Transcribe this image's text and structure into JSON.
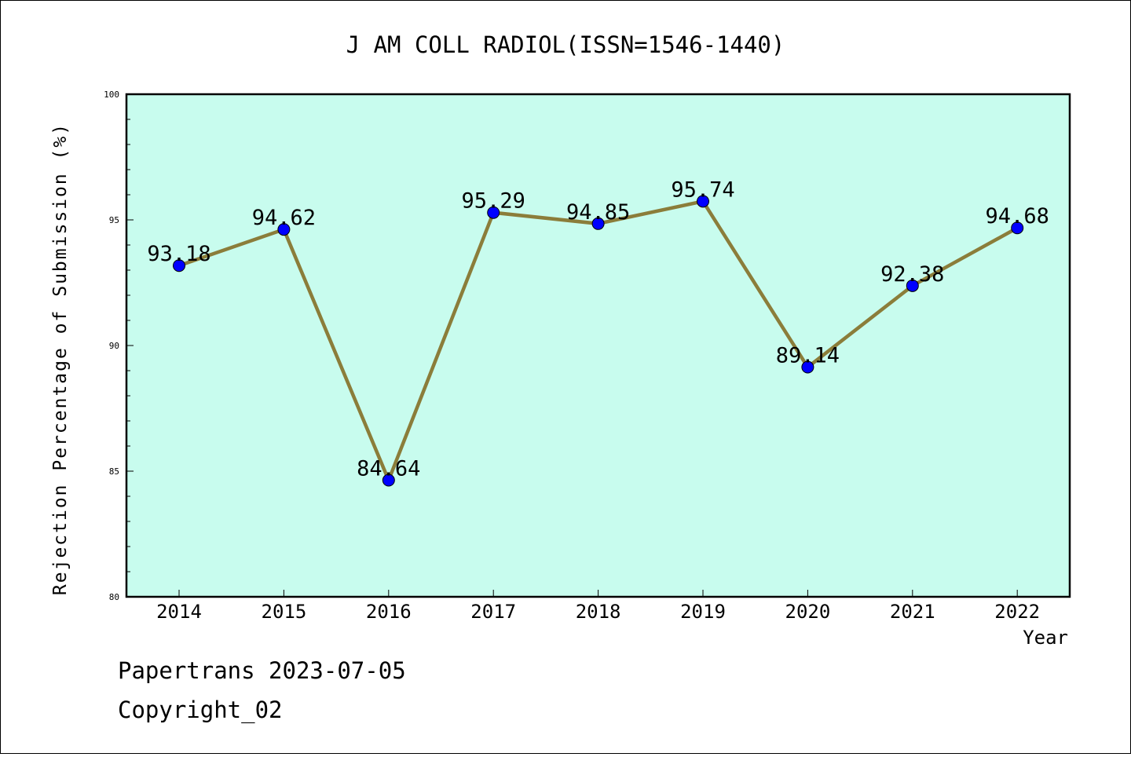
{
  "chart_data": {
    "type": "line",
    "title": "J AM COLL RADIOL(ISSN=1546-1440)",
    "xlabel": "Year",
    "ylabel": "Rejection Percentage of Submission (%)",
    "categories": [
      "2014",
      "2015",
      "2016",
      "2017",
      "2018",
      "2019",
      "2020",
      "2021",
      "2022"
    ],
    "series": [
      {
        "values": [
          93.18,
          94.62,
          84.64,
          95.29,
          94.85,
          95.74,
          89.14,
          92.38,
          94.68
        ],
        "data_labels": [
          "93.18",
          "94.62",
          "84.64",
          "95.29",
          "94.85",
          "95.74",
          "89.14",
          "92.38",
          "94.68"
        ],
        "line_color": "#8b7d3a",
        "marker_color": "#0000ff"
      }
    ],
    "ylim": [
      80,
      100
    ],
    "yticks": [
      "80",
      "85",
      "90",
      "95",
      "100"
    ],
    "plot_background": "#c8fcee",
    "grid": false,
    "legend": "none"
  },
  "footer": {
    "line1": "Papertrans 2023-07-05",
    "line2": "Copyright_02"
  }
}
